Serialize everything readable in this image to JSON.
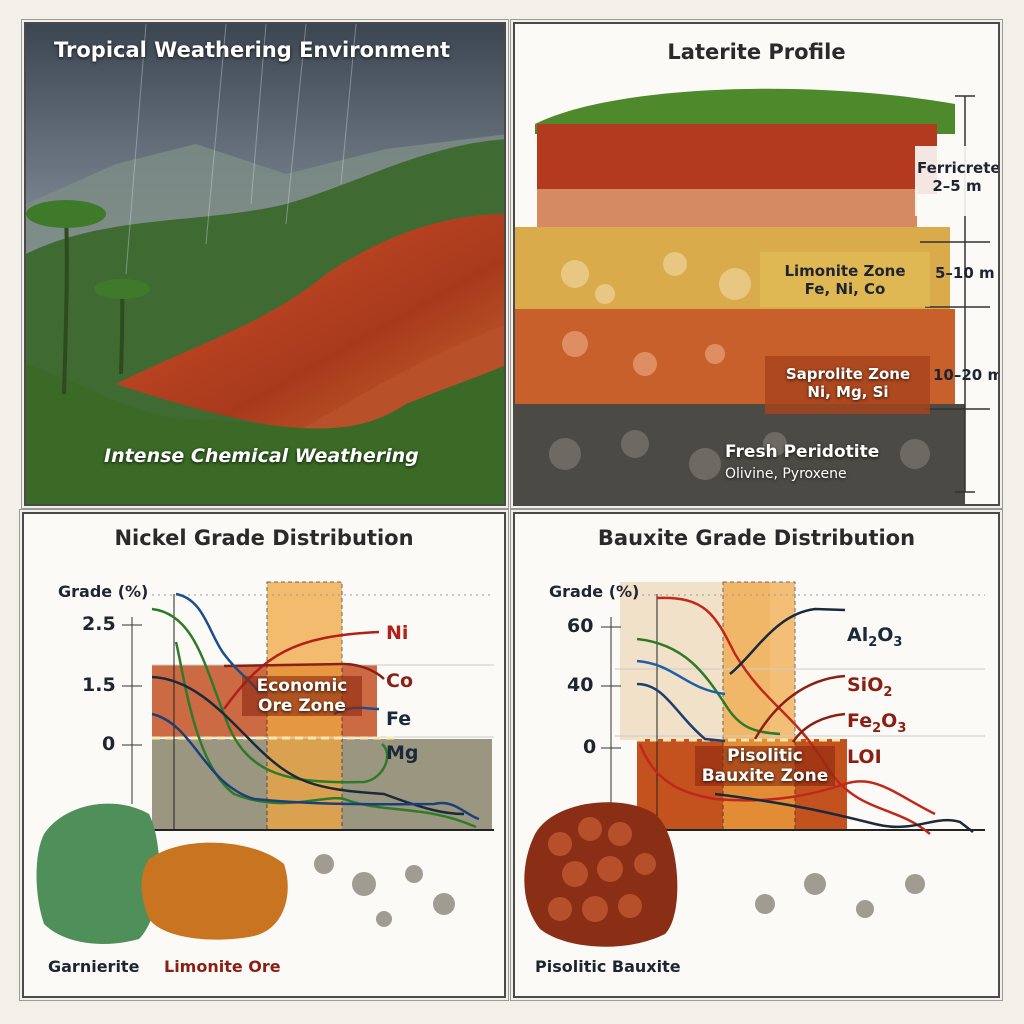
{
  "panels": {
    "weathering": {
      "title": "Tropical Weathering Environment",
      "caption": "Intense Chemical Weathering"
    },
    "profile": {
      "title": "Laterite Profile",
      "ferricrete": {
        "name": "Ferricrete",
        "thickness": "2–5 m"
      },
      "limonite": {
        "name": "Limonite Zone",
        "elements": "Fe, Ni, Co",
        "thickness": "5–10 m"
      },
      "saprolite": {
        "name": "Saprolite Zone",
        "elements": "Ni, Mg, Si",
        "thickness": "10–20 m"
      },
      "bedrock": {
        "name": "Fresh Peridotite",
        "minerals": "Olivine, Pyroxene"
      }
    },
    "nickel": {
      "title": "Nickel Grade Distribution",
      "ylabel": "Grade (%)",
      "ticks": [
        "2.5",
        "1.5",
        "0"
      ],
      "zone": [
        "Economic",
        "Ore Zone"
      ],
      "series": [
        "Ni",
        "Co",
        "Fe",
        "Mg"
      ],
      "samples": [
        "Garnierite",
        "Limonite Ore"
      ]
    },
    "bauxite": {
      "title": "Bauxite Grade Distribution",
      "ylabel": "Grade (%)",
      "ticks": [
        "60",
        "40",
        "0"
      ],
      "zone": [
        "Pisolitic",
        "Bauxite Zone"
      ],
      "series": [
        {
          "base": "Al",
          "s1": "2",
          "mid": "O",
          "s2": "3"
        },
        {
          "base": "SiO",
          "s1": "2",
          "mid": "",
          "s2": ""
        },
        {
          "base": "Fe",
          "s1": "2",
          "mid": "O",
          "s2": "3"
        },
        {
          "base": "LOI",
          "s1": "",
          "mid": "",
          "s2": ""
        }
      ],
      "samples": [
        "Pisolitic Bauxite"
      ]
    }
  },
  "colors": {
    "ni": "#b3201a",
    "co": "#8a1f14",
    "fe": "#1d4e8c",
    "mg": "#2f7a2a",
    "dark": "#1b2a3a",
    "band": "#f0a640",
    "rust": "#c2532a"
  }
}
